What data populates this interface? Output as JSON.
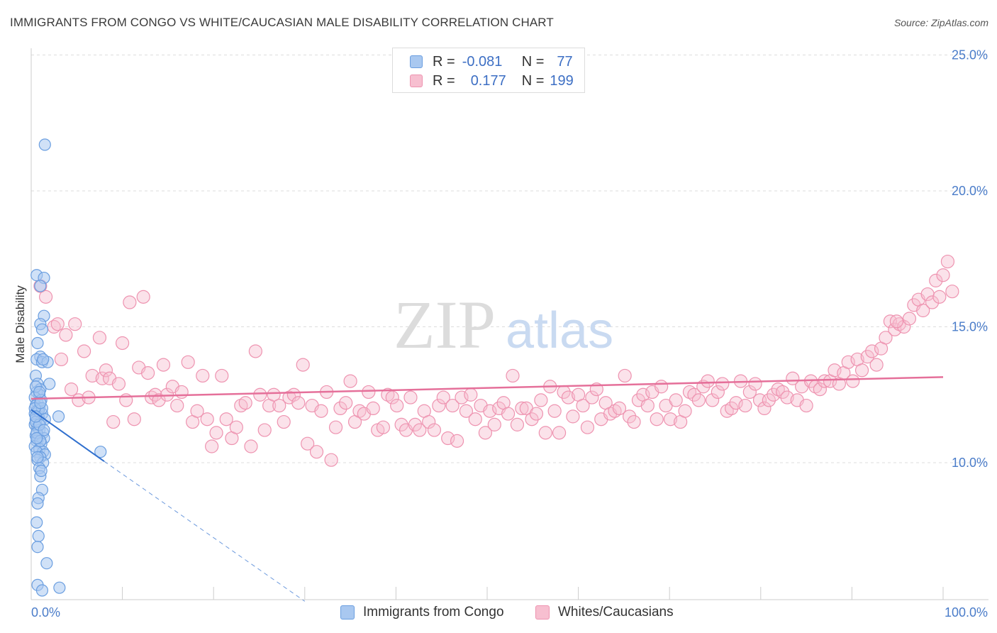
{
  "title": "IMMIGRANTS FROM CONGO VS WHITE/CAUCASIAN MALE DISABILITY CORRELATION CHART",
  "source": "Source: ZipAtlas.com",
  "watermark": {
    "zip": "ZIP",
    "atlas": "atlas"
  },
  "legend": {
    "rows": [
      {
        "r_label": "R =",
        "r_value": "-0.081",
        "n_label": "N =",
        "n_value": "77"
      },
      {
        "r_label": "R =",
        "r_value": "0.177",
        "n_label": "N =",
        "n_value": "199"
      }
    ]
  },
  "bottom_legend": [
    "Immigrants from Congo",
    "Whites/Caucasians"
  ],
  "colors": {
    "blue_fill": "#a9c8f0",
    "blue_stroke": "#6a9ee0",
    "blue_line": "#2f6fce",
    "pink_fill": "#f7bfd0",
    "pink_stroke": "#ee93b0",
    "pink_line": "#e5709a",
    "grid": "#dddddd",
    "tick_text": "#4a7cc9"
  },
  "chart_data": {
    "type": "scatter",
    "title": "IMMIGRANTS FROM CONGO VS WHITE/CAUCASIAN MALE DISABILITY CORRELATION CHART",
    "xlabel": "",
    "ylabel": "Male Disability",
    "xlim": [
      0,
      100
    ],
    "ylim": [
      5,
      26
    ],
    "x_tick_labels": [
      "0.0%",
      "100.0%"
    ],
    "y_ticks": [
      10,
      15,
      20,
      25
    ],
    "y_tick_labels": [
      "10.0%",
      "15.0%",
      "20.0%",
      "25.0%"
    ],
    "series": [
      {
        "name": "Immigrants from Congo",
        "R": -0.081,
        "N": 77,
        "trend": {
          "x": [
            0,
            8.0
          ],
          "y": [
            11.95,
            10.05
          ],
          "dash_to": {
            "x": 30.0,
            "y": 4.9
          }
        },
        "points": [
          [
            1.5,
            21.7
          ],
          [
            0.6,
            16.9
          ],
          [
            1.4,
            16.8
          ],
          [
            1.0,
            16.5
          ],
          [
            1.4,
            15.4
          ],
          [
            1.0,
            15.1
          ],
          [
            1.2,
            14.9
          ],
          [
            0.7,
            14.4
          ],
          [
            1.0,
            13.9
          ],
          [
            0.6,
            13.8
          ],
          [
            1.2,
            13.7
          ],
          [
            1.8,
            13.7
          ],
          [
            0.5,
            13.2
          ],
          [
            0.7,
            12.9
          ],
          [
            2.0,
            12.9
          ],
          [
            1.0,
            12.7
          ],
          [
            0.6,
            12.6
          ],
          [
            0.9,
            12.5
          ],
          [
            0.4,
            12.4
          ],
          [
            0.7,
            12.2
          ],
          [
            0.5,
            12.1
          ],
          [
            0.9,
            12.0
          ],
          [
            0.6,
            11.9
          ],
          [
            1.2,
            11.8
          ],
          [
            0.4,
            11.8
          ],
          [
            0.8,
            11.7
          ],
          [
            3.0,
            11.7
          ],
          [
            0.5,
            11.6
          ],
          [
            1.0,
            11.5
          ],
          [
            0.4,
            11.4
          ],
          [
            0.7,
            11.3
          ],
          [
            0.9,
            11.2
          ],
          [
            1.3,
            11.1
          ],
          [
            0.5,
            11.0
          ],
          [
            0.8,
            10.9
          ],
          [
            1.4,
            10.9
          ],
          [
            0.6,
            10.8
          ],
          [
            1.1,
            10.7
          ],
          [
            0.4,
            10.6
          ],
          [
            0.9,
            10.5
          ],
          [
            1.3,
            10.4
          ],
          [
            0.6,
            10.4
          ],
          [
            7.6,
            10.4
          ],
          [
            1.5,
            10.3
          ],
          [
            1.0,
            10.2
          ],
          [
            0.7,
            10.1
          ],
          [
            1.3,
            10.0
          ],
          [
            0.9,
            9.8
          ],
          [
            1.0,
            9.5
          ],
          [
            1.2,
            9.0
          ],
          [
            0.8,
            8.7
          ],
          [
            0.7,
            8.5
          ],
          [
            0.6,
            7.8
          ],
          [
            0.8,
            7.3
          ],
          [
            0.7,
            6.9
          ],
          [
            1.7,
            6.3
          ],
          [
            0.7,
            5.5
          ],
          [
            3.1,
            5.4
          ],
          [
            1.2,
            5.3
          ],
          [
            0.5,
            11.5
          ],
          [
            1.1,
            12.3
          ],
          [
            0.8,
            11.9
          ],
          [
            1.5,
            11.6
          ],
          [
            0.6,
            11.1
          ],
          [
            1.0,
            10.8
          ],
          [
            0.5,
            12.8
          ],
          [
            1.2,
            12.0
          ],
          [
            0.9,
            11.4
          ],
          [
            0.4,
            12.0
          ],
          [
            1.4,
            11.2
          ],
          [
            0.7,
            10.2
          ],
          [
            1.1,
            9.7
          ],
          [
            0.5,
            11.7
          ],
          [
            0.9,
            12.6
          ],
          [
            1.3,
            13.8
          ],
          [
            0.6,
            10.9
          ],
          [
            1.0,
            12.2
          ]
        ]
      },
      {
        "name": "Whites/Caucasians",
        "R": 0.177,
        "N": 199,
        "trend": {
          "x": [
            0,
            100
          ],
          "y": [
            12.35,
            13.15
          ]
        },
        "points": [
          [
            1.0,
            16.5
          ],
          [
            1.6,
            16.1
          ],
          [
            2.5,
            15.0
          ],
          [
            2.9,
            15.1
          ],
          [
            3.8,
            14.7
          ],
          [
            3.3,
            13.8
          ],
          [
            4.4,
            12.7
          ],
          [
            4.8,
            15.1
          ],
          [
            5.2,
            12.3
          ],
          [
            5.8,
            14.1
          ],
          [
            6.3,
            12.4
          ],
          [
            6.7,
            13.2
          ],
          [
            7.5,
            14.6
          ],
          [
            7.8,
            13.1
          ],
          [
            8.2,
            13.4
          ],
          [
            8.6,
            13.1
          ],
          [
            9.0,
            11.5
          ],
          [
            9.6,
            12.9
          ],
          [
            10.0,
            14.4
          ],
          [
            10.4,
            12.3
          ],
          [
            10.8,
            15.9
          ],
          [
            11.3,
            11.6
          ],
          [
            11.8,
            13.5
          ],
          [
            12.3,
            16.1
          ],
          [
            12.8,
            13.3
          ],
          [
            13.2,
            12.4
          ],
          [
            13.6,
            12.5
          ],
          [
            14.0,
            12.3
          ],
          [
            14.5,
            13.6
          ],
          [
            14.9,
            12.5
          ],
          [
            15.5,
            12.8
          ],
          [
            16.0,
            12.1
          ],
          [
            16.5,
            12.6
          ],
          [
            17.2,
            13.7
          ],
          [
            17.7,
            11.5
          ],
          [
            18.2,
            11.9
          ],
          [
            18.8,
            13.2
          ],
          [
            19.3,
            11.6
          ],
          [
            19.8,
            10.6
          ],
          [
            20.3,
            11.1
          ],
          [
            20.9,
            13.2
          ],
          [
            21.4,
            11.6
          ],
          [
            22.0,
            10.9
          ],
          [
            22.5,
            11.3
          ],
          [
            23.0,
            12.1
          ],
          [
            23.5,
            12.2
          ],
          [
            24.1,
            10.6
          ],
          [
            24.6,
            14.1
          ],
          [
            25.1,
            12.5
          ],
          [
            25.6,
            11.2
          ],
          [
            26.1,
            12.1
          ],
          [
            26.6,
            12.5
          ],
          [
            27.2,
            12.1
          ],
          [
            27.7,
            11.5
          ],
          [
            28.3,
            12.4
          ],
          [
            28.8,
            12.5
          ],
          [
            29.3,
            12.2
          ],
          [
            29.8,
            13.6
          ],
          [
            30.3,
            10.7
          ],
          [
            30.8,
            12.1
          ],
          [
            31.3,
            10.4
          ],
          [
            31.8,
            11.9
          ],
          [
            32.4,
            12.6
          ],
          [
            32.9,
            10.1
          ],
          [
            33.4,
            11.3
          ],
          [
            33.9,
            12.0
          ],
          [
            34.5,
            12.2
          ],
          [
            35.0,
            13.0
          ],
          [
            35.5,
            11.5
          ],
          [
            36.0,
            11.9
          ],
          [
            36.5,
            11.8
          ],
          [
            37.0,
            12.6
          ],
          [
            37.5,
            12.0
          ],
          [
            38.0,
            11.2
          ],
          [
            38.6,
            11.3
          ],
          [
            39.1,
            12.5
          ],
          [
            39.6,
            12.4
          ],
          [
            40.1,
            12.1
          ],
          [
            40.6,
            11.4
          ],
          [
            41.1,
            11.2
          ],
          [
            41.6,
            12.4
          ],
          [
            42.1,
            11.4
          ],
          [
            42.6,
            11.2
          ],
          [
            43.1,
            11.9
          ],
          [
            43.6,
            11.5
          ],
          [
            44.2,
            11.2
          ],
          [
            44.7,
            12.1
          ],
          [
            45.2,
            12.4
          ],
          [
            45.7,
            10.9
          ],
          [
            46.2,
            12.1
          ],
          [
            46.7,
            10.8
          ],
          [
            47.2,
            12.4
          ],
          [
            47.7,
            11.9
          ],
          [
            48.2,
            12.5
          ],
          [
            48.7,
            11.6
          ],
          [
            49.3,
            12.1
          ],
          [
            49.8,
            11.1
          ],
          [
            50.3,
            11.9
          ],
          [
            50.8,
            11.4
          ],
          [
            51.3,
            12.0
          ],
          [
            51.8,
            12.2
          ],
          [
            52.3,
            11.8
          ],
          [
            52.8,
            13.2
          ],
          [
            53.3,
            11.4
          ],
          [
            53.8,
            12.0
          ],
          [
            54.3,
            12.0
          ],
          [
            54.9,
            11.6
          ],
          [
            55.4,
            11.8
          ],
          [
            55.9,
            12.3
          ],
          [
            56.4,
            11.1
          ],
          [
            56.9,
            12.8
          ],
          [
            57.4,
            11.9
          ],
          [
            57.9,
            11.1
          ],
          [
            58.4,
            12.6
          ],
          [
            58.9,
            12.4
          ],
          [
            59.4,
            11.7
          ],
          [
            60.0,
            12.5
          ],
          [
            60.5,
            12.1
          ],
          [
            61.0,
            11.3
          ],
          [
            61.5,
            12.4
          ],
          [
            62.0,
            12.7
          ],
          [
            62.5,
            11.6
          ],
          [
            63.0,
            12.2
          ],
          [
            63.5,
            11.8
          ],
          [
            64.0,
            11.9
          ],
          [
            64.5,
            12.0
          ],
          [
            65.1,
            13.2
          ],
          [
            65.6,
            11.7
          ],
          [
            66.1,
            11.5
          ],
          [
            66.6,
            12.3
          ],
          [
            67.1,
            12.5
          ],
          [
            67.6,
            12.1
          ],
          [
            68.1,
            12.6
          ],
          [
            68.6,
            11.6
          ],
          [
            69.1,
            12.8
          ],
          [
            69.6,
            12.1
          ],
          [
            70.1,
            11.6
          ],
          [
            70.7,
            12.3
          ],
          [
            71.2,
            11.5
          ],
          [
            71.7,
            11.9
          ],
          [
            72.2,
            12.6
          ],
          [
            72.7,
            12.5
          ],
          [
            73.2,
            12.3
          ],
          [
            73.7,
            12.8
          ],
          [
            74.2,
            13.0
          ],
          [
            74.7,
            12.3
          ],
          [
            75.3,
            12.6
          ],
          [
            75.8,
            12.9
          ],
          [
            76.3,
            11.9
          ],
          [
            76.8,
            12.0
          ],
          [
            77.3,
            12.2
          ],
          [
            77.8,
            13.0
          ],
          [
            78.3,
            12.1
          ],
          [
            78.8,
            12.6
          ],
          [
            79.4,
            12.9
          ],
          [
            79.9,
            12.3
          ],
          [
            80.4,
            12.0
          ],
          [
            80.9,
            12.3
          ],
          [
            81.4,
            12.5
          ],
          [
            81.9,
            12.7
          ],
          [
            82.4,
            12.6
          ],
          [
            82.9,
            12.4
          ],
          [
            83.5,
            13.1
          ],
          [
            84.0,
            12.3
          ],
          [
            84.5,
            12.8
          ],
          [
            85.0,
            12.1
          ],
          [
            85.5,
            13.0
          ],
          [
            86.0,
            12.8
          ],
          [
            86.5,
            12.7
          ],
          [
            87.0,
            13.0
          ],
          [
            87.6,
            13.0
          ],
          [
            88.1,
            13.4
          ],
          [
            88.6,
            12.9
          ],
          [
            89.1,
            13.3
          ],
          [
            89.6,
            13.7
          ],
          [
            90.1,
            13.0
          ],
          [
            90.6,
            13.8
          ],
          [
            91.1,
            13.4
          ],
          [
            91.7,
            13.9
          ],
          [
            92.2,
            14.1
          ],
          [
            92.7,
            13.6
          ],
          [
            93.2,
            14.2
          ],
          [
            93.7,
            14.6
          ],
          [
            94.2,
            15.2
          ],
          [
            94.7,
            14.9
          ],
          [
            95.2,
            15.1
          ],
          [
            95.7,
            15.0
          ],
          [
            96.3,
            15.3
          ],
          [
            96.8,
            15.8
          ],
          [
            97.3,
            16.0
          ],
          [
            97.8,
            15.6
          ],
          [
            98.3,
            16.2
          ],
          [
            98.8,
            15.9
          ],
          [
            99.2,
            16.7
          ],
          [
            99.6,
            16.1
          ],
          [
            100.0,
            16.9
          ],
          [
            100.5,
            17.4
          ],
          [
            101.0,
            16.3
          ],
          [
            94.9,
            15.2
          ]
        ]
      }
    ]
  }
}
